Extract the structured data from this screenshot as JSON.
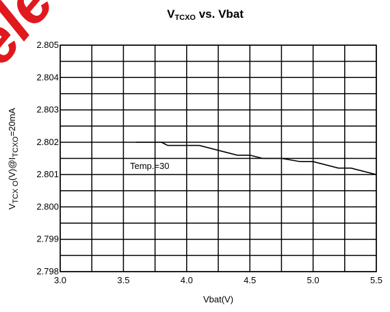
{
  "chart_data": {
    "type": "line",
    "title_parts": [
      "V",
      "TCXO",
      " vs. Vbat"
    ],
    "ylabel_parts": [
      "V",
      "TCX O",
      "(V)@I",
      "TCXO",
      "=20mA"
    ],
    "xlabel": "Vbat(V)",
    "watermark": "Release",
    "annotation": "Temp.=30",
    "x": [
      3.6,
      3.8,
      3.85,
      4.0,
      4.1,
      4.2,
      4.3,
      4.4,
      4.5,
      4.6,
      4.75,
      4.9,
      5.0,
      5.1,
      5.2,
      5.3,
      5.4,
      5.5
    ],
    "series": [
      {
        "name": "Temp.=30",
        "color": "#000000",
        "values": [
          2.802,
          2.802,
          2.8019,
          2.8019,
          2.8019,
          2.8018,
          2.8017,
          2.8016,
          2.8016,
          2.8015,
          2.8015,
          2.8014,
          2.8014,
          2.8013,
          2.8012,
          2.8012,
          2.8011,
          2.801
        ]
      }
    ],
    "xlim": [
      3.0,
      5.5
    ],
    "ylim": [
      2.798,
      2.805
    ],
    "xticks": [
      {
        "value": 3,
        "label": "3.0"
      },
      3.5,
      {
        "value": 4,
        "label": "4.0"
      },
      4.5,
      {
        "value": 5,
        "label": "5.0"
      },
      5.5
    ],
    "yticks": [
      2.798,
      2.799,
      {
        "value": 2.8,
        "label": "2.800"
      },
      2.801,
      2.802,
      2.803,
      2.804,
      2.805
    ],
    "xgrid": [
      3.25,
      3.75,
      4.25,
      4.75,
      5.25
    ],
    "ygrid": [
      2.7985,
      2.7995,
      2.8005,
      2.8015,
      2.8025,
      2.8035,
      2.8045
    ],
    "grid": true
  }
}
